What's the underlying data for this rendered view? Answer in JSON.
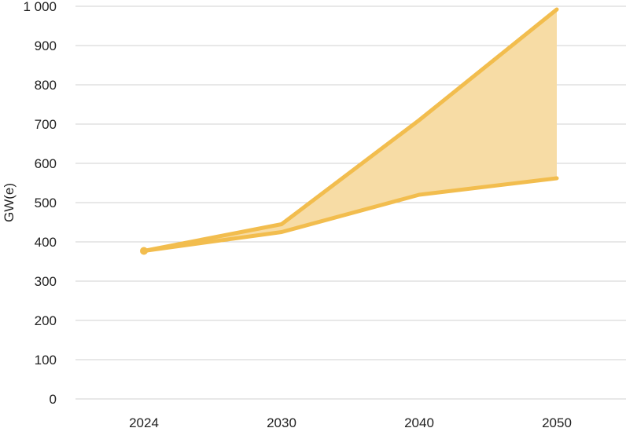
{
  "chart_data": {
    "type": "area",
    "title": "",
    "xlabel": "",
    "ylabel": "GW(e)",
    "categories": [
      "2024",
      "2030",
      "2040",
      "2050"
    ],
    "ylim": [
      0,
      1000
    ],
    "yticks": [
      "0",
      "100",
      "200",
      "300",
      "400",
      "500",
      "600",
      "700",
      "800",
      "900",
      "1 000"
    ],
    "grid": true,
    "legend": "none",
    "series": [
      {
        "role": "high",
        "values": [
          377,
          445,
          710,
          992
        ]
      },
      {
        "role": "low",
        "values": [
          377,
          425,
          520,
          562
        ]
      }
    ],
    "colors": {
      "line": "#f2bd4e",
      "fill": "#f7dca5",
      "grid": "#d0d0d0",
      "text": "#222222"
    }
  }
}
